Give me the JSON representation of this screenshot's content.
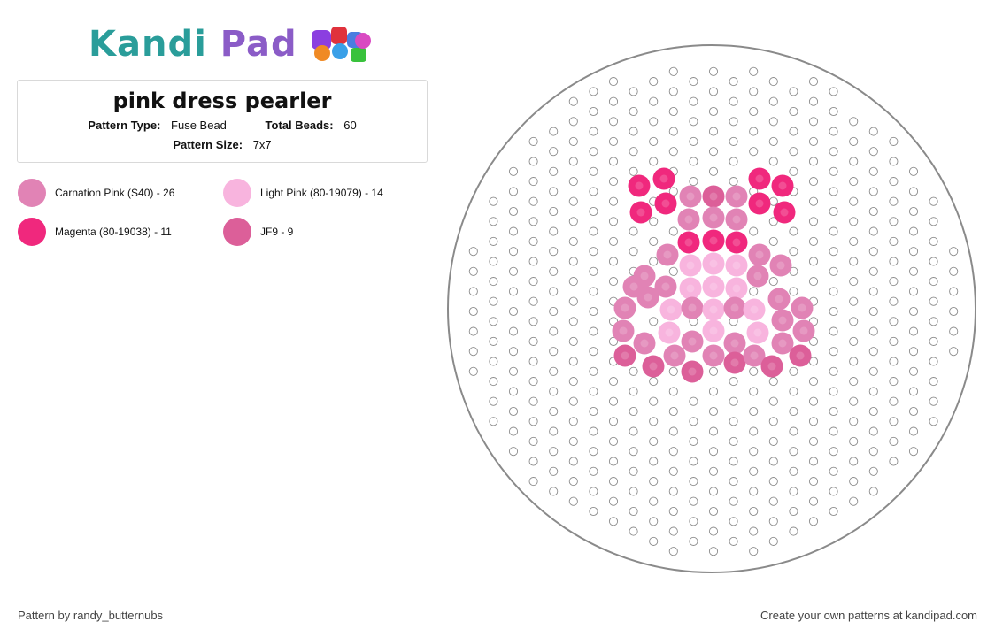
{
  "header": {
    "logo_text_part1": "Kandi",
    "logo_text_part2": "Pad",
    "logo_icon": "bead-pile-icon"
  },
  "pattern": {
    "title": "pink dress pearler",
    "type_label": "Pattern Type:",
    "type_value": "Fuse Bead",
    "total_label": "Total Beads:",
    "total_value": "60",
    "size_label": "Pattern Size:",
    "size_value": "7x7"
  },
  "legend": [
    {
      "label": "Carnation Pink (S40) - 26",
      "color": "#e183b5"
    },
    {
      "label": "Light Pink (80-19079) - 14",
      "color": "#f8b4de"
    },
    {
      "label": "Magenta (80-19038) - 11",
      "color": "#f0287d"
    },
    {
      "label": "JF9 - 9",
      "color": "#dc5f99"
    }
  ],
  "footer": {
    "credit": "Pattern by randy_butternubs",
    "cta": "Create your own patterns at kandipad.com"
  }
}
